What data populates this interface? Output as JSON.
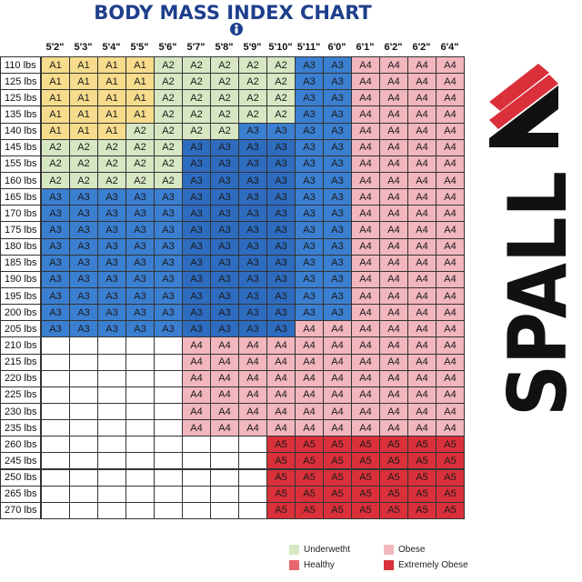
{
  "title": "BODY MASS INDEX CHART",
  "icon": "person-icon",
  "chart_data": {
    "type": "heatmap",
    "title": "BODY MASS INDEX CHART",
    "columns": [
      "5'2\"",
      "5'3\"",
      "5'4\"",
      "5'5\"",
      "5'6\"",
      "5'7\"",
      "5'8\"",
      "5'9\"",
      "5'10\"",
      "5'11\"",
      "6'0\"",
      "6'1\"",
      "6'2\"",
      "6'2\"",
      "6'4\""
    ],
    "rows": [
      "110 lbs",
      "125 lbs",
      "125 lbs",
      "135 lbs",
      "140 lbs",
      "145 lbs",
      "155 lbs",
      "160 lbs",
      "165 lbs",
      "170 lbs",
      "175 lbs",
      "180 lbs",
      "185 lbs",
      "190 lbs",
      "195 lbs",
      "200 lbs",
      "205 lbs",
      "210 lbs",
      "215 lbs",
      "220 lbs",
      "225 lbs",
      "230 lbs",
      "235 lbs",
      "260 lbs",
      "245 lbs",
      "250 lbs",
      "265 lbs",
      "270 lbs"
    ],
    "cells": [
      [
        "A1",
        "A1",
        "A1",
        "A1",
        "A2",
        "A2",
        "A2",
        "A2",
        "A2",
        "A3",
        "A3",
        "A4",
        "A4",
        "A4",
        "A4"
      ],
      [
        "A1",
        "A1",
        "A1",
        "A1",
        "A2",
        "A2",
        "A2",
        "A2",
        "A2",
        "A3",
        "A3",
        "A4",
        "A4",
        "A4",
        "A4"
      ],
      [
        "A1",
        "A1",
        "A1",
        "A1",
        "A2",
        "A2",
        "A2",
        "A2",
        "A2",
        "A3",
        "A3",
        "A4",
        "A4",
        "A4",
        "A4"
      ],
      [
        "A1",
        "A1",
        "A1",
        "A1",
        "A2",
        "A2",
        "A2",
        "A2",
        "A2",
        "A3",
        "A3",
        "A4",
        "A4",
        "A4",
        "A4"
      ],
      [
        "A1",
        "A1",
        "A1",
        "A2",
        "A2",
        "A2",
        "A2",
        "A3",
        "A3",
        "A3",
        "A3",
        "A4",
        "A4",
        "A4",
        "A4"
      ],
      [
        "A2",
        "A2",
        "A2",
        "A2",
        "A2",
        "A3",
        "A3",
        "A3",
        "A3",
        "A3",
        "A3",
        "A4",
        "A4",
        "A4",
        "A4"
      ],
      [
        "A2",
        "A2",
        "A2",
        "A2",
        "A2",
        "A3",
        "A3",
        "A3",
        "A3",
        "A3",
        "A3",
        "A4",
        "A4",
        "A4",
        "A4"
      ],
      [
        "A2",
        "A2",
        "A2",
        "A2",
        "A2",
        "A3",
        "A3",
        "A3",
        "A3",
        "A3",
        "A3",
        "A4",
        "A4",
        "A4",
        "A4"
      ],
      [
        "A3",
        "A3",
        "A3",
        "A3",
        "A3",
        "A3",
        "A3",
        "A3",
        "A3",
        "A3",
        "A3",
        "A4",
        "A4",
        "A4",
        "A4"
      ],
      [
        "A3",
        "A3",
        "A3",
        "A3",
        "A3",
        "A3",
        "A3",
        "A3",
        "A3",
        "A3",
        "A3",
        "A4",
        "A4",
        "A4",
        "A4"
      ],
      [
        "A3",
        "A3",
        "A3",
        "A3",
        "A3",
        "A3",
        "A3",
        "A3",
        "A3",
        "A3",
        "A3",
        "A4",
        "A4",
        "A4",
        "A4"
      ],
      [
        "A3",
        "A3",
        "A3",
        "A3",
        "A3",
        "A3",
        "A3",
        "A3",
        "A3",
        "A3",
        "A3",
        "A4",
        "A4",
        "A4",
        "A4"
      ],
      [
        "A3",
        "A3",
        "A3",
        "A3",
        "A3",
        "A3",
        "A3",
        "A3",
        "A3",
        "A3",
        "A3",
        "A4",
        "A4",
        "A4",
        "A4"
      ],
      [
        "A3",
        "A3",
        "A3",
        "A3",
        "A3",
        "A3",
        "A3",
        "A3",
        "A3",
        "A3",
        "A3",
        "A4",
        "A4",
        "A4",
        "A4"
      ],
      [
        "A3",
        "A3",
        "A3",
        "A3",
        "A3",
        "A3",
        "A3",
        "A3",
        "A3",
        "A3",
        "A3",
        "A4",
        "A4",
        "A4",
        "A4"
      ],
      [
        "A3",
        "A3",
        "A3",
        "A3",
        "A3",
        "A3",
        "A3",
        "A3",
        "A3",
        "A3",
        "A3",
        "A4",
        "A4",
        "A4",
        "A4"
      ],
      [
        "A3",
        "A3",
        "A3",
        "A3",
        "A3",
        "A3",
        "A3",
        "A3",
        "A3",
        "A4",
        "A4",
        "A4",
        "A4",
        "A4",
        "A4"
      ],
      [
        "",
        "",
        "",
        "",
        "",
        "A4",
        "A4",
        "A4",
        "A4",
        "A4",
        "A4",
        "A4",
        "A4",
        "A4",
        "A4"
      ],
      [
        "",
        "",
        "",
        "",
        "",
        "A4",
        "A4",
        "A4",
        "A4",
        "A4",
        "A4",
        "A4",
        "A4",
        "A4",
        "A4"
      ],
      [
        "",
        "",
        "",
        "",
        "",
        "A4",
        "A4",
        "A4",
        "A4",
        "A4",
        "A4",
        "A4",
        "A4",
        "A4",
        "A4"
      ],
      [
        "",
        "",
        "",
        "",
        "",
        "A4",
        "A4",
        "A4",
        "A4",
        "A4",
        "A4",
        "A4",
        "A4",
        "A4",
        "A4"
      ],
      [
        "",
        "",
        "",
        "",
        "",
        "A4",
        "A4",
        "A4",
        "A4",
        "A4",
        "A4",
        "A4",
        "A4",
        "A4",
        "A4"
      ],
      [
        "",
        "",
        "",
        "",
        "",
        "A4",
        "A4",
        "A4",
        "A4",
        "A4",
        "A4",
        "A4",
        "A4",
        "A4",
        "A4"
      ],
      [
        "",
        "",
        "",
        "",
        "",
        "",
        "",
        "",
        "A5",
        "A5",
        "A5",
        "A5",
        "A5",
        "A5",
        "A5"
      ],
      [
        "",
        "",
        "",
        "",
        "",
        "",
        "",
        "",
        "A5",
        "A5",
        "A5",
        "A5",
        "A5",
        "A5",
        "A5"
      ],
      [
        "",
        "",
        "",
        "",
        "",
        "",
        "",
        "",
        "A5",
        "A5",
        "A5",
        "A5",
        "A5",
        "A5",
        "A5"
      ],
      [
        "",
        "",
        "",
        "",
        "",
        "",
        "",
        "",
        "A5",
        "A5",
        "A5",
        "A5",
        "A5",
        "A5",
        "A5"
      ],
      [
        "",
        "",
        "",
        "",
        "",
        "",
        "",
        "",
        "A5",
        "A5",
        "A5",
        "A5",
        "A5",
        "A5",
        "A5"
      ]
    ],
    "legend": [
      {
        "label": "Underwetht",
        "color": "#d7e7c4"
      },
      {
        "label": "Obese",
        "color": "#f2b6bd"
      },
      {
        "label": "Healthy",
        "color": "#e8666d"
      },
      {
        "label": "Extremely Obese",
        "color": "#d9303a"
      }
    ],
    "colors": {
      "A1": "#f6dc8c",
      "A2": "#d7e7c4",
      "A3": "#3b7fd1",
      "A4": "#f2b6bd",
      "A5": "#d9303a"
    }
  },
  "logo": {
    "text": "SPALL",
    "colors": [
      "#111111",
      "#d9303a"
    ]
  }
}
